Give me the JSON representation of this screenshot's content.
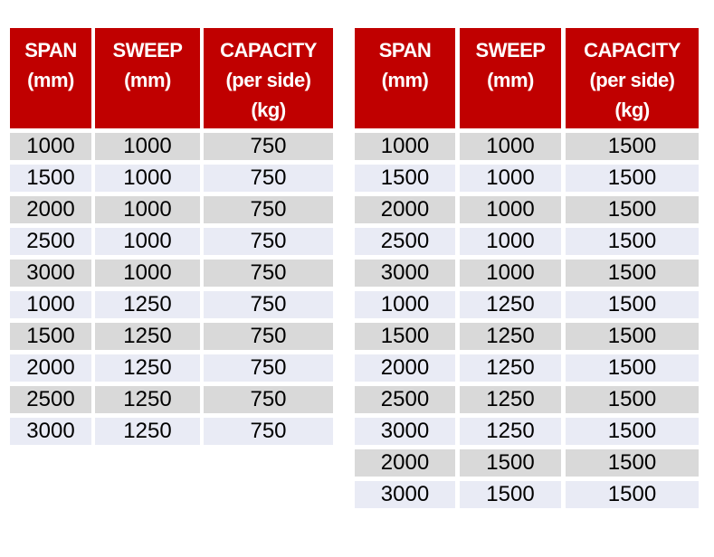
{
  "colors": {
    "header_bg": "#c00000",
    "header_text": "#ffffff",
    "row_band_gray": "#d9d9d9",
    "row_band_light": "#e9ebf5",
    "cell_text": "#000000",
    "page_bg": "#ffffff"
  },
  "left_table": {
    "name": "span-sweep-capacity-750",
    "header": {
      "col1": [
        "SPAN",
        "(mm)"
      ],
      "col2": [
        "SWEEP",
        "(mm)"
      ],
      "col3": [
        "CAPACITY",
        "(per side)",
        "(kg)"
      ]
    },
    "columns": [
      "SPAN (mm)",
      "SWEEP (mm)",
      "CAPACITY (per side) (kg)"
    ],
    "rows": [
      [
        "1000",
        "1000",
        "750"
      ],
      [
        "1500",
        "1000",
        "750"
      ],
      [
        "2000",
        "1000",
        "750"
      ],
      [
        "2500",
        "1000",
        "750"
      ],
      [
        "3000",
        "1000",
        "750"
      ],
      [
        "1000",
        "1250",
        "750"
      ],
      [
        "1500",
        "1250",
        "750"
      ],
      [
        "2000",
        "1250",
        "750"
      ],
      [
        "2500",
        "1250",
        "750"
      ],
      [
        "3000",
        "1250",
        "750"
      ]
    ]
  },
  "right_table": {
    "name": "span-sweep-capacity-1500",
    "header": {
      "col1": [
        "SPAN",
        "(mm)"
      ],
      "col2": [
        "SWEEP",
        "(mm)"
      ],
      "col3": [
        "CAPACITY",
        "(per side)",
        "(kg)"
      ]
    },
    "columns": [
      "SPAN (mm)",
      "SWEEP (mm)",
      "CAPACITY (per side) (kg)"
    ],
    "rows": [
      [
        "1000",
        "1000",
        "1500"
      ],
      [
        "1500",
        "1000",
        "1500"
      ],
      [
        "2000",
        "1000",
        "1500"
      ],
      [
        "2500",
        "1000",
        "1500"
      ],
      [
        "3000",
        "1000",
        "1500"
      ],
      [
        "1000",
        "1250",
        "1500"
      ],
      [
        "1500",
        "1250",
        "1500"
      ],
      [
        "2000",
        "1250",
        "1500"
      ],
      [
        "2500",
        "1250",
        "1500"
      ],
      [
        "3000",
        "1250",
        "1500"
      ],
      [
        "2000",
        "1500",
        "1500"
      ],
      [
        "3000",
        "1500",
        "1500"
      ]
    ]
  }
}
